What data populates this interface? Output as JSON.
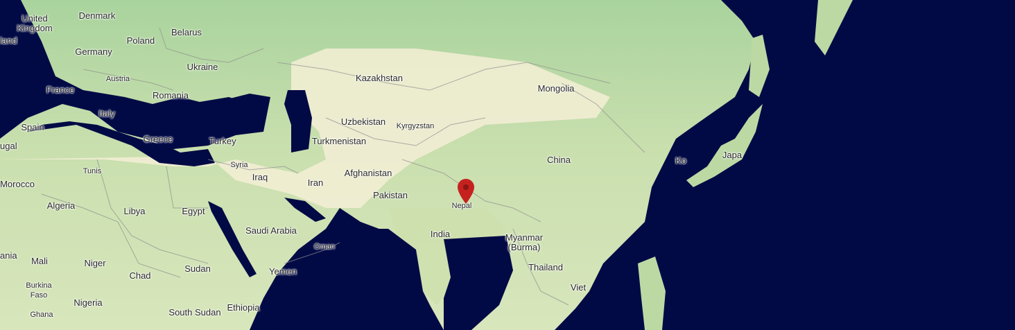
{
  "marker": {
    "name": "Nepal",
    "color": "#c5221f"
  },
  "labels": {
    "united_kingdom": "United\nKingdom",
    "ireland": "land",
    "denmark": "Denmark",
    "germany": "Germany",
    "poland": "Poland",
    "belarus": "Belarus",
    "ukraine": "Ukraine",
    "austria": "Austria",
    "france": "France",
    "romania": "Romania",
    "italy": "Italy",
    "spain": "Spain",
    "portugal": "ugal",
    "greece": "Greece",
    "turkey": "Turkey",
    "syria": "Syria",
    "iraq": "Iraq",
    "iran": "Iran",
    "kazakhstan": "Kazakhstan",
    "uzbekistan": "Uzbekistan",
    "turkmenistan": "Turkmenistan",
    "kyrgyzstan": "Kyrgyzstan",
    "afghanistan": "Afghanistan",
    "pakistan": "Pakistan",
    "mongolia": "Mongolia",
    "china": "China",
    "korea": "Ko",
    "japan": "Japa",
    "india": "India",
    "nepal": "Nepal",
    "myanmar": "Myanmar\n(Burma)",
    "thailand": "Thailand",
    "vietnam": "Viet",
    "tunisia": "Tunis",
    "morocco": "Morocco",
    "algeria": "Algeria",
    "libya": "Libya",
    "egypt": "Egypt",
    "saudi_arabia": "Saudi Arabia",
    "oman": "Oman",
    "yemen": "Yemen",
    "mauritania": "ania",
    "mali": "Mali",
    "niger": "Niger",
    "chad": "Chad",
    "sudan": "Sudan",
    "burkina_faso": "Burkina\nFaso",
    "nigeria": "Nigeria",
    "south_sudan": "South Sudan",
    "ethiopia": "Ethiopia",
    "ghana": "Ghana"
  }
}
